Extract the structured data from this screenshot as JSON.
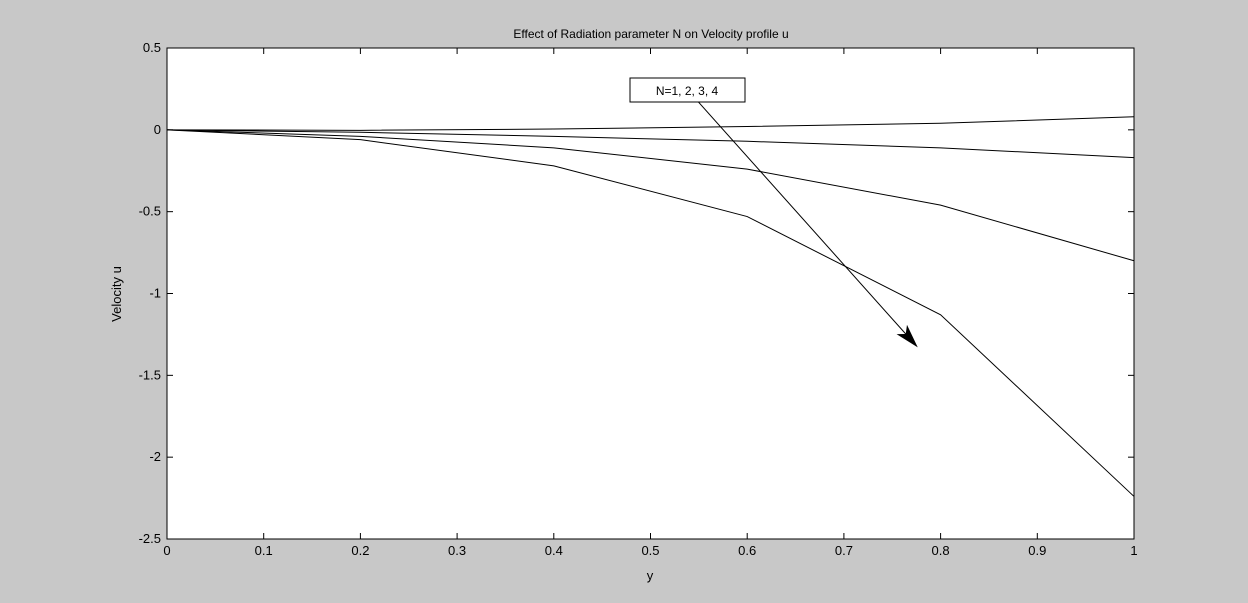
{
  "chart_data": {
    "type": "line",
    "title": "Effect of Radiation parameter N on Velocity profile u",
    "xlabel": "y",
    "ylabel": "Velocity u",
    "xlim": [
      0,
      1
    ],
    "ylim": [
      -2.5,
      0.5
    ],
    "xticks": [
      0,
      0.1,
      0.2,
      0.3,
      0.4,
      0.5,
      0.6,
      0.7,
      0.8,
      0.9,
      1
    ],
    "yticks": [
      -2.5,
      -2,
      -1.5,
      -1,
      -0.5,
      0,
      0.5
    ],
    "x": [
      0,
      0.2,
      0.4,
      0.6,
      0.8,
      1
    ],
    "series": [
      {
        "values": [
          0,
          -0.003,
          0.005,
          0.02,
          0.04,
          0.08
        ]
      },
      {
        "values": [
          0,
          -0.015,
          -0.04,
          -0.07,
          -0.11,
          -0.17
        ]
      },
      {
        "values": [
          0,
          -0.04,
          -0.11,
          -0.24,
          -0.46,
          -0.8
        ]
      },
      {
        "values": [
          0,
          -0.06,
          -0.22,
          -0.53,
          -1.13,
          -2.24
        ]
      }
    ],
    "grid": false,
    "annotation": {
      "text": "N=1, 2, 3, 4",
      "arrow_from": [
        0.545,
        0.2
      ],
      "arrow_to": [
        0.775,
        -1.32
      ]
    },
    "colors": {
      "background": "#c8c8c8",
      "axes_bg": "#ffffff",
      "line": "#000000"
    }
  }
}
